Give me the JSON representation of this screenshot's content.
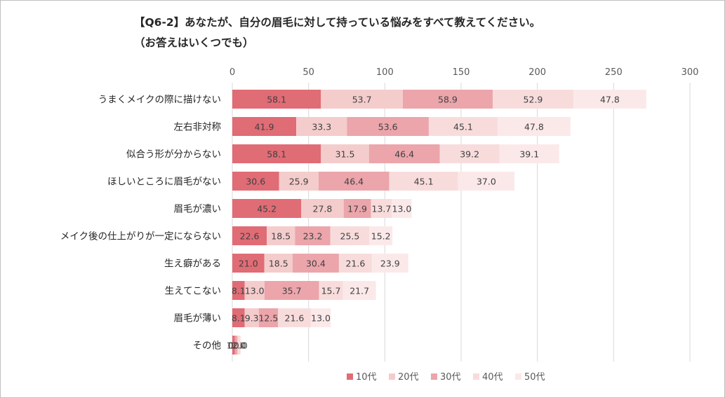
{
  "chart_data": {
    "type": "bar",
    "orientation": "horizontal",
    "stacked": true,
    "title": "【Q6-2】あなたが、自分の眉毛に対して持っている悩みをすべて教えてください。",
    "subtitle": "（お答えはいくつでも）",
    "xlim": [
      0,
      300
    ],
    "xticks": [
      0,
      50,
      100,
      150,
      200,
      250,
      300
    ],
    "grid": true,
    "legend_position": "bottom",
    "categories": [
      "うまくメイクの際に描けない",
      "左右非対称",
      "似合う形が分からない",
      "ほしいところに眉毛がない",
      "眉毛が濃い",
      "メイク後の仕上がりが一定にならない",
      "生え癖がある",
      "生えてこない",
      "眉毛が薄い",
      "その他"
    ],
    "series": [
      {
        "name": "10代",
        "color": "#e06c75",
        "values": [
          58.1,
          41.9,
          58.1,
          30.6,
          45.2,
          22.6,
          21.0,
          8.1,
          8.1,
          1.6
        ]
      },
      {
        "name": "20代",
        "color": "#f4cccc",
        "values": [
          53.7,
          33.3,
          31.5,
          25.9,
          27.8,
          18.5,
          18.5,
          13.0,
          9.3,
          0.0
        ]
      },
      {
        "name": "30代",
        "color": "#eba5ab",
        "values": [
          58.9,
          53.6,
          46.4,
          46.4,
          17.9,
          23.2,
          30.4,
          35.7,
          12.5,
          1.8
        ]
      },
      {
        "name": "40代",
        "color": "#f8dcdc",
        "values": [
          52.9,
          45.1,
          39.2,
          45.1,
          13.7,
          25.5,
          21.6,
          15.7,
          21.6,
          2.0
        ]
      },
      {
        "name": "50代",
        "color": "#fbe9ea",
        "values": [
          47.8,
          47.8,
          39.1,
          37.0,
          13.0,
          15.2,
          23.9,
          21.7,
          13.0,
          0.0
        ]
      }
    ]
  }
}
